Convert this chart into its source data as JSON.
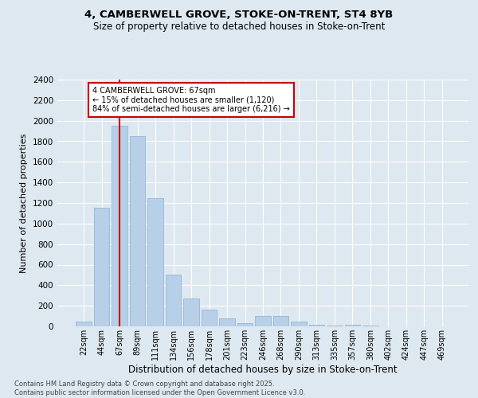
{
  "title1": "4, CAMBERWELL GROVE, STOKE-ON-TRENT, ST4 8YB",
  "title2": "Size of property relative to detached houses in Stoke-on-Trent",
  "xlabel": "Distribution of detached houses by size in Stoke-on-Trent",
  "ylabel": "Number of detached properties",
  "categories": [
    "22sqm",
    "44sqm",
    "67sqm",
    "89sqm",
    "111sqm",
    "134sqm",
    "156sqm",
    "178sqm",
    "201sqm",
    "223sqm",
    "246sqm",
    "268sqm",
    "290sqm",
    "313sqm",
    "335sqm",
    "357sqm",
    "380sqm",
    "402sqm",
    "424sqm",
    "447sqm",
    "469sqm"
  ],
  "values": [
    50,
    1150,
    1950,
    1850,
    1250,
    500,
    270,
    160,
    80,
    30,
    100,
    100,
    50,
    15,
    8,
    15,
    5,
    3,
    3,
    3,
    3
  ],
  "vline_index": 2,
  "annotation_line1": "4 CAMBERWELL GROVE: 67sqm",
  "annotation_line2": "← 15% of detached houses are smaller (1,120)",
  "annotation_line3": "84% of semi-detached houses are larger (6,216) →",
  "bar_color": "#b8cfe8",
  "bar_edge_color": "#8aafd4",
  "vline_color": "#cc0000",
  "annotation_box_color": "#ffffff",
  "annotation_box_edge": "#cc0000",
  "bg_color": "#dde8f0",
  "plot_bg_color": "#dde8f0",
  "grid_color": "#ffffff",
  "ylim": [
    0,
    2400
  ],
  "yticks": [
    0,
    200,
    400,
    600,
    800,
    1000,
    1200,
    1400,
    1600,
    1800,
    2000,
    2200,
    2400
  ],
  "footer_line1": "Contains HM Land Registry data © Crown copyright and database right 2025.",
  "footer_line2": "Contains public sector information licensed under the Open Government Licence v3.0."
}
